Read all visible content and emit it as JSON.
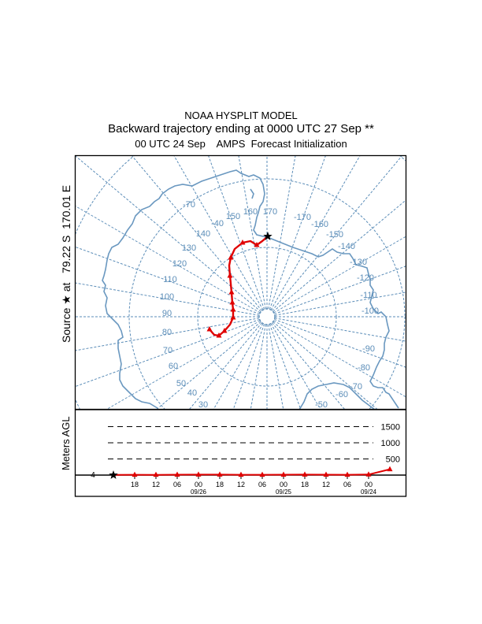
{
  "header": {
    "line1": "NOAA HYSPLIT MODEL",
    "line2": "Backward trajectory ending at 0000 UTC 27 Sep **",
    "line3": "00 UTC 24 Sep    AMPS  Forecast Initialization"
  },
  "source_label": "Source ★ at   79.22 S  170.01 E",
  "source": {
    "lat": "79.22 S",
    "lon": "170.01 E",
    "marker": "star-icon"
  },
  "map": {
    "projection": "south-polar stereographic",
    "colors": {
      "grid": "#5b8db8",
      "coast": "#6a98c0",
      "trajectory": "#e00000",
      "source": "#000000"
    },
    "longitude_labels": [
      "-70",
      "150",
      "160",
      "170",
      "-170",
      "-160",
      "-150",
      "-140",
      "-130",
      "-120",
      "-110",
      "-100",
      "-90",
      "-80",
      "-70",
      "-60",
      "-50",
      "-40",
      "140",
      "130",
      "120",
      "110",
      "100",
      "90",
      "80",
      "70",
      "60",
      "50",
      "40",
      "30",
      "20"
    ],
    "trajectory_markers": "red triangles every 6 h"
  },
  "profile": {
    "ylabel": "Meters AGL",
    "start_height_label": "4",
    "height_levels": [
      {
        "value": 1500,
        "label": "1500"
      },
      {
        "value": 1000,
        "label": "1000"
      },
      {
        "value": 500,
        "label": "500"
      }
    ],
    "time_ticks": [
      "18",
      "12",
      "06",
      "00",
      "18",
      "12",
      "06",
      "00",
      "18",
      "12",
      "06",
      "00"
    ],
    "date_labels": [
      "09/26",
      "09/25",
      "09/24"
    ],
    "heights_m": [
      4,
      10,
      8,
      12,
      15,
      14,
      10,
      10,
      12,
      14,
      12,
      10,
      18,
      180
    ]
  }
}
